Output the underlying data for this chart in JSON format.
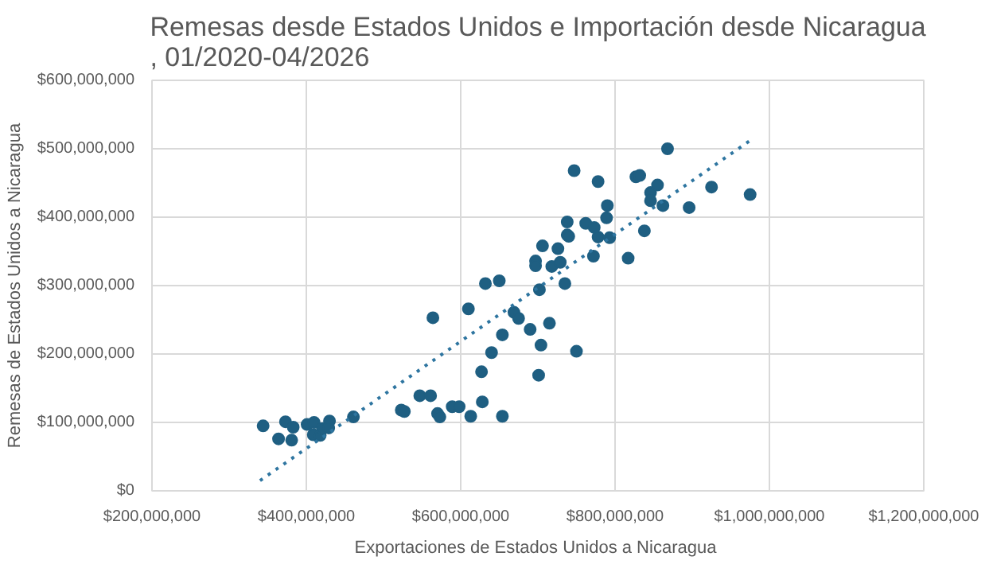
{
  "chart_data": {
    "type": "scatter",
    "title": "Remesas desde Estados Unidos e Importación desde Nicaragua , 01/2020-04/2026",
    "xlabel": "Exportaciones de Estados Unidos a  Nicaragua",
    "ylabel": "Remesas de Estados Unidos a Nicaragua",
    "xlim": [
      200000000,
      1200000000
    ],
    "ylim": [
      0,
      600000000
    ],
    "xticks": [
      {
        "value": 200000000,
        "label": "$200,000,000"
      },
      {
        "value": 400000000,
        "label": "$400,000,000"
      },
      {
        "value": 600000000,
        "label": "$600,000,000"
      },
      {
        "value": 800000000,
        "label": "$800,000,000"
      },
      {
        "value": 1000000000,
        "label": "$1,000,000,000"
      },
      {
        "value": 1200000000,
        "label": "$1,200,000,000"
      }
    ],
    "yticks": [
      {
        "value": 0,
        "label": "$0"
      },
      {
        "value": 100000000,
        "label": "$100,000,000"
      },
      {
        "value": 200000000,
        "label": "$200,000,000"
      },
      {
        "value": 300000000,
        "label": "$300,000,000"
      },
      {
        "value": 400000000,
        "label": "$400,000,000"
      },
      {
        "value": 500000000,
        "label": "$500,000,000"
      },
      {
        "value": 600000000,
        "label": "$600,000,000"
      }
    ],
    "grid": true,
    "series": [
      {
        "marker": "circle",
        "color": "#1f5f82",
        "x": [
          344000000,
          364000000,
          373000000,
          383000000,
          381000000,
          401000000,
          410000000,
          409000000,
          418000000,
          421000000,
          430000000,
          429000000,
          461000000,
          523000000,
          527000000,
          547000000,
          561000000,
          564000000,
          570000000,
          573000000,
          589000000,
          598000000,
          610000000,
          613000000,
          627000000,
          628000000,
          632000000,
          640000000,
          650000000,
          654000000,
          654000000,
          669000000,
          675000000,
          690000000,
          697000000,
          697000000,
          702000000,
          701000000,
          704000000,
          706000000,
          715000000,
          718000000,
          726000000,
          729000000,
          735000000,
          738000000,
          738000000,
          747000000,
          750000000,
          762000000,
          773000000,
          778000000,
          772000000,
          778000000,
          789000000,
          790000000,
          793000000,
          740000000,
          817000000,
          827000000,
          832000000,
          838000000,
          846000000,
          846000000,
          855000000,
          862000000,
          868000000,
          896000000,
          925000000,
          975000000
        ],
        "values": [
          95000000,
          76000000,
          101000000,
          93000000,
          74000000,
          97000000,
          100000000,
          82000000,
          81000000,
          91000000,
          102000000,
          92000000,
          108000000,
          118000000,
          116000000,
          139000000,
          139000000,
          253000000,
          113000000,
          108000000,
          123000000,
          123000000,
          266000000,
          109000000,
          174000000,
          130000000,
          303000000,
          202000000,
          307000000,
          228000000,
          109000000,
          261000000,
          252000000,
          236000000,
          336000000,
          329000000,
          294000000,
          169000000,
          213000000,
          358000000,
          245000000,
          328000000,
          354000000,
          334000000,
          303000000,
          393000000,
          374000000,
          468000000,
          204000000,
          391000000,
          385000000,
          371000000,
          343000000,
          452000000,
          399000000,
          417000000,
          370000000,
          372000000,
          340000000,
          459000000,
          461000000,
          380000000,
          436000000,
          424000000,
          447000000,
          417000000,
          500000000,
          414000000,
          444000000,
          433000000
        ]
      },
      {
        "type": "line",
        "color": "#2e75a0",
        "line_style": "dotted",
        "x": [
          340000000,
          975000000
        ],
        "values": [
          15000000,
          512000000
        ]
      }
    ]
  }
}
